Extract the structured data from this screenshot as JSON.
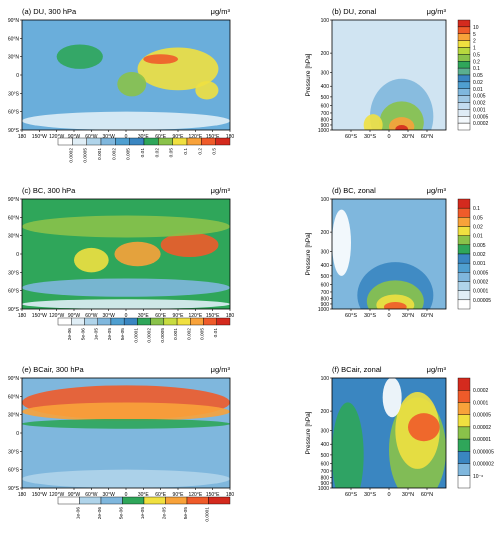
{
  "chart_data": [
    {
      "id": "a",
      "type": "heatmap",
      "title": "(a)  DU, 300 hPa",
      "units": "μg/m³",
      "content": "global map",
      "x_ticks": [
        "180",
        "150°W",
        "120°W",
        "90°W",
        "60°W",
        "30°W",
        "0",
        "30°E",
        "60°E",
        "90°E",
        "120°E",
        "150°E",
        "180"
      ],
      "y_ticks": [
        "90°N",
        "60°N",
        "30°N",
        "0",
        "30°S",
        "60°S",
        "90°S"
      ],
      "colorbar": {
        "labels": [
          "0.0002",
          "0.0005",
          "0.001",
          "0.002",
          "0.005",
          "0.01",
          "0.02",
          "0.05",
          "0.1",
          "0.2",
          "0.5"
        ],
        "colors": [
          "#ffffff",
          "#e0eef6",
          "#b0d4ea",
          "#7fb7dd",
          "#4f9fd0",
          "#3a86c1",
          "#2fa65a",
          "#8ac24a",
          "#f0e040",
          "#f8a23a",
          "#ef5b2a",
          "#d42a1e"
        ]
      },
      "field": {
        "bg": "#6aaedb",
        "blobs": [
          {
            "cx": 90,
            "cy": 10,
            "rx": 70,
            "ry": 35,
            "c": "#f0e040"
          },
          {
            "cx": 60,
            "cy": 26,
            "rx": 30,
            "ry": 8,
            "c": "#ef5b2a"
          },
          {
            "cx": 10,
            "cy": -15,
            "rx": 25,
            "ry": 20,
            "c": "#8ac24a"
          },
          {
            "cx": -80,
            "cy": 30,
            "rx": 40,
            "ry": 20,
            "c": "#2fa65a"
          },
          {
            "cx": 140,
            "cy": -25,
            "rx": 20,
            "ry": 15,
            "c": "#f0e040"
          },
          {
            "cx": 0,
            "cy": -75,
            "rx": 180,
            "ry": 15,
            "c": "#e0eef6"
          }
        ]
      }
    },
    {
      "id": "b",
      "type": "heatmap",
      "title": "(b)  DU, zonal",
      "units": "μg/m³",
      "content": "zonal mean cross section",
      "x_ticks": [
        "60°S",
        "30°S",
        "0",
        "30°N",
        "60°N"
      ],
      "ylabel": "Pressure [hPa]",
      "y_ticks": [
        "100",
        "200",
        "300",
        "400",
        "500",
        "600",
        "700",
        "800",
        "900",
        "1000"
      ],
      "colorbar": {
        "labels": [
          "10",
          "5",
          "2",
          "1",
          "0.5",
          "0.2",
          "0.1",
          "0.05",
          "0.02",
          "0.01",
          "0.005",
          "0.002",
          "0.001",
          "0.0005",
          "0.0002"
        ],
        "colors": [
          "#d42a1e",
          "#ef5b2a",
          "#f8a23a",
          "#f0e040",
          "#b8d83e",
          "#8ac24a",
          "#2fa65a",
          "#5aaf8f",
          "#3a86c1",
          "#4f9fd0",
          "#7fb7dd",
          "#a0c8e4",
          "#c4dcef",
          "#dfecf6",
          "#f3f8fc",
          "#ffffff"
        ]
      },
      "field": {
        "bg": "#d0e4f2",
        "blobs": [
          {
            "cx": 20,
            "cy": 750,
            "rx": 50,
            "ry": 500,
            "c": "#7fb7dd"
          },
          {
            "cx": 20,
            "cy": 850,
            "rx": 35,
            "ry": 350,
            "c": "#8ac24a"
          },
          {
            "cx": 20,
            "cy": 930,
            "rx": 20,
            "ry": 180,
            "c": "#f8a23a"
          },
          {
            "cx": -25,
            "cy": 900,
            "rx": 15,
            "ry": 200,
            "c": "#f0e040"
          },
          {
            "cx": 20,
            "cy": 980,
            "rx": 10,
            "ry": 60,
            "c": "#d42a1e"
          }
        ]
      }
    },
    {
      "id": "c",
      "type": "heatmap",
      "title": "(c)  BC, 300 hPa",
      "units": "μg/m³",
      "content": "global map",
      "x_ticks": [
        "180",
        "150°W",
        "120°W",
        "90°W",
        "60°W",
        "30°W",
        "0",
        "30°E",
        "60°E",
        "90°E",
        "120°E",
        "150°E",
        "180"
      ],
      "y_ticks": [
        "90°N",
        "60°N",
        "30°N",
        "0",
        "30°S",
        "60°S",
        "90°S"
      ],
      "colorbar": {
        "labels": [
          "2e-06",
          "5e-06",
          "1e-05",
          "2e-05",
          "5e-05",
          "0.0001",
          "0.0002",
          "0.0005",
          "0.001",
          "0.002",
          "0.005",
          "0.01"
        ],
        "colors": [
          "#ffffff",
          "#e0eef6",
          "#b0d4ea",
          "#7fb7dd",
          "#4f9fd0",
          "#3a86c1",
          "#2fa65a",
          "#8ac24a",
          "#c8dc40",
          "#f0e040",
          "#f8a23a",
          "#ef5b2a",
          "#d42a1e"
        ]
      },
      "field": {
        "bg": "#2fa65a",
        "blobs": [
          {
            "cx": 20,
            "cy": 0,
            "rx": 40,
            "ry": 20,
            "c": "#f8a23a"
          },
          {
            "cx": 110,
            "cy": 15,
            "rx": 50,
            "ry": 20,
            "c": "#ef5b2a"
          },
          {
            "cx": -60,
            "cy": -10,
            "rx": 30,
            "ry": 20,
            "c": "#f0e040"
          },
          {
            "cx": 0,
            "cy": 45,
            "rx": 180,
            "ry": 18,
            "c": "#8ac24a"
          },
          {
            "cx": 0,
            "cy": -55,
            "rx": 180,
            "ry": 15,
            "c": "#7fb7dd"
          },
          {
            "cx": 0,
            "cy": -82,
            "rx": 180,
            "ry": 8,
            "c": "#e0eef6"
          }
        ]
      }
    },
    {
      "id": "d",
      "type": "heatmap",
      "title": "(d)  BC, zonal",
      "units": "μg/m³",
      "content": "zonal mean cross section",
      "x_ticks": [
        "60°S",
        "30°S",
        "0",
        "30°N",
        "60°N"
      ],
      "ylabel": "Pressure [hPa]",
      "y_ticks": [
        "100",
        "200",
        "300",
        "400",
        "500",
        "600",
        "700",
        "800",
        "900",
        "1000"
      ],
      "colorbar": {
        "labels": [
          "0.1",
          "0.05",
          "0.02",
          "0.01",
          "0.005",
          "0.002",
          "0.001",
          "0.0005",
          "0.0002",
          "0.0001",
          "0.00005"
        ],
        "colors": [
          "#d42a1e",
          "#ef5b2a",
          "#f8a23a",
          "#f0e040",
          "#8ac24a",
          "#2fa65a",
          "#3a86c1",
          "#4f9fd0",
          "#7fb7dd",
          "#b0d4ea",
          "#e0eef6",
          "#ffffff"
        ]
      },
      "field": {
        "bg": "#7fb7dd",
        "blobs": [
          {
            "cx": 10,
            "cy": 750,
            "rx": 60,
            "ry": 450,
            "c": "#3a86c1"
          },
          {
            "cx": 10,
            "cy": 850,
            "rx": 45,
            "ry": 350,
            "c": "#8ac24a"
          },
          {
            "cx": 10,
            "cy": 920,
            "rx": 30,
            "ry": 200,
            "c": "#f0e040"
          },
          {
            "cx": 10,
            "cy": 960,
            "rx": 18,
            "ry": 100,
            "c": "#ef5b2a"
          },
          {
            "cx": -75,
            "cy": 250,
            "rx": 15,
            "ry": 150,
            "c": "#ffffff"
          }
        ]
      }
    },
    {
      "id": "e",
      "type": "heatmap",
      "title": "(e)  BCair, 300 hPa",
      "units": "μg/m³",
      "content": "global map",
      "x_ticks": [
        "180",
        "150°W",
        "120°W",
        "90°W",
        "60°W",
        "30°W",
        "0",
        "30°E",
        "60°E",
        "90°E",
        "120°E",
        "150°E",
        "180"
      ],
      "y_ticks": [
        "90°N",
        "60°N",
        "30°N",
        "0",
        "30°S",
        "60°S",
        "90°S"
      ],
      "colorbar": {
        "labels": [
          "1e-06",
          "2e-06",
          "5e-06",
          "1e-05",
          "2e-05",
          "5e-05",
          "0.0001"
        ],
        "colors": [
          "#ffffff",
          "#b0d4ea",
          "#7fb7dd",
          "#2fa65a",
          "#f0e040",
          "#f8a23a",
          "#ef5b2a",
          "#d42a1e"
        ]
      },
      "field": {
        "bg": "#7fb7dd",
        "blobs": [
          {
            "cx": 0,
            "cy": 50,
            "rx": 180,
            "ry": 28,
            "c": "#ef5b2a"
          },
          {
            "cx": 0,
            "cy": 35,
            "rx": 180,
            "ry": 15,
            "c": "#f8a23a"
          },
          {
            "cx": 0,
            "cy": 15,
            "rx": 180,
            "ry": 8,
            "c": "#2fa65a"
          },
          {
            "cx": 0,
            "cy": -75,
            "rx": 180,
            "ry": 15,
            "c": "#b0d4ea"
          }
        ]
      }
    },
    {
      "id": "f",
      "type": "heatmap",
      "title": "(f)  BCair, zonal",
      "units": "μg/m³",
      "content": "zonal mean cross section",
      "x_ticks": [
        "60°S",
        "30°S",
        "0",
        "30°N",
        "60°N"
      ],
      "ylabel": "Pressure [hPa]",
      "y_ticks": [
        "100",
        "200",
        "300",
        "400",
        "500",
        "600",
        "700",
        "800",
        "900",
        "1000"
      ],
      "colorbar": {
        "labels": [
          "0.0002",
          "0.0001",
          "0.00005",
          "0.00002",
          "0.00001",
          "0.000005",
          "0.000002",
          "10⁻⁶"
        ],
        "colors": [
          "#d42a1e",
          "#ef5b2a",
          "#f8a23a",
          "#f0e040",
          "#8ac24a",
          "#2fa65a",
          "#3a86c1",
          "#7fb7dd",
          "#ffffff"
        ]
      },
      "field": {
        "bg": "#3a86c1",
        "blobs": [
          {
            "cx": 45,
            "cy": 450,
            "rx": 45,
            "ry": 450,
            "c": "#8ac24a"
          },
          {
            "cx": 45,
            "cy": 300,
            "rx": 35,
            "ry": 200,
            "c": "#f0e040"
          },
          {
            "cx": 55,
            "cy": 280,
            "rx": 25,
            "ry": 80,
            "c": "#ef5b2a"
          },
          {
            "cx": -65,
            "cy": 500,
            "rx": 25,
            "ry": 400,
            "c": "#2fa65a"
          },
          {
            "cx": 5,
            "cy": 150,
            "rx": 15,
            "ry": 80,
            "c": "#ffffff"
          }
        ]
      }
    }
  ]
}
